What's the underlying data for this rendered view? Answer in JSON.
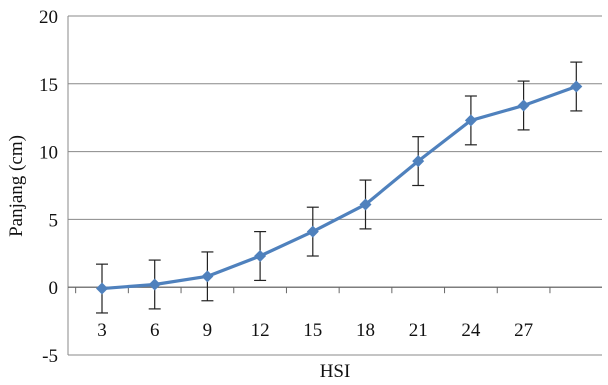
{
  "chart_data": {
    "type": "line",
    "xlabel": "HSI",
    "ylabel": "Panjang (cm)",
    "ylim": [
      -5,
      20
    ],
    "yticks": [
      "-5",
      "0",
      "5",
      "10",
      "15",
      "20"
    ],
    "xtick_labels": [
      "3",
      "6",
      "9",
      "12",
      "15",
      "18",
      "21",
      "24",
      "27"
    ],
    "grid": "horizontal",
    "series": [
      {
        "color": "#4f81bd",
        "marker": "diamond",
        "points": [
          {
            "x": "3",
            "y": -0.1,
            "err": 1.8
          },
          {
            "x": "6",
            "y": 0.2,
            "err": 1.8
          },
          {
            "x": "9",
            "y": 0.8,
            "err": 1.8
          },
          {
            "x": "12",
            "y": 2.3,
            "err": 1.8
          },
          {
            "x": "15",
            "y": 4.1,
            "err": 1.8
          },
          {
            "x": "18",
            "y": 6.1,
            "err": 1.8
          },
          {
            "x": "21",
            "y": 9.3,
            "err": 1.8
          },
          {
            "x": "24",
            "y": 12.3,
            "err": 1.8
          },
          {
            "x": "27",
            "y": 13.4,
            "err": 1.8
          },
          {
            "x": "",
            "y": 14.8,
            "err": 1.8
          }
        ]
      }
    ]
  }
}
